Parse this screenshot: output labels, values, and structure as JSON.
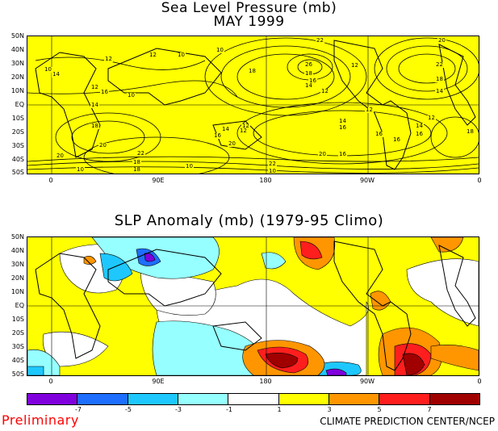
{
  "titles": {
    "top_line1": "Sea Level Pressure (mb)",
    "top_line2": "MAY 1999",
    "bottom": "SLP Anomaly (mb) (1979-95 Climo)"
  },
  "lat_labels": [
    "50N",
    "40N",
    "30N",
    "20N",
    "10N",
    "EQ",
    "10S",
    "20S",
    "30S",
    "40S",
    "50S"
  ],
  "lon_labels": [
    "0",
    "90E",
    "180",
    "90W",
    "0"
  ],
  "top_contour_labels": [
    "10",
    "14",
    "12",
    "12",
    "10",
    "10",
    "22",
    "20",
    "26",
    "22",
    "18",
    "12",
    "18",
    "18",
    "16",
    "14",
    "12",
    "14",
    "12",
    "16",
    "14",
    "12",
    "18",
    "10",
    "12",
    "14",
    "12",
    "16",
    "14",
    "16",
    "18",
    "14",
    "16",
    "12",
    "16",
    "20",
    "20",
    "16",
    "20",
    "22",
    "18",
    "10",
    "10",
    "22",
    "16",
    "10",
    "18",
    "20"
  ],
  "anomaly_colorbar": {
    "tick_labels": [
      "-7",
      "-5",
      "-3",
      "-1",
      "1",
      "3",
      "5",
      "7"
    ],
    "colors": [
      "#7f00dd",
      "#1e6eff",
      "#1ec8ff",
      "#96ffff",
      "#ffffff",
      "#ffff00",
      "#ff9600",
      "#ff1e1e",
      "#a00000"
    ]
  },
  "footer": {
    "preliminary": "Preliminary",
    "credit": "CLIMATE PREDICTION CENTER/NCEP"
  }
}
